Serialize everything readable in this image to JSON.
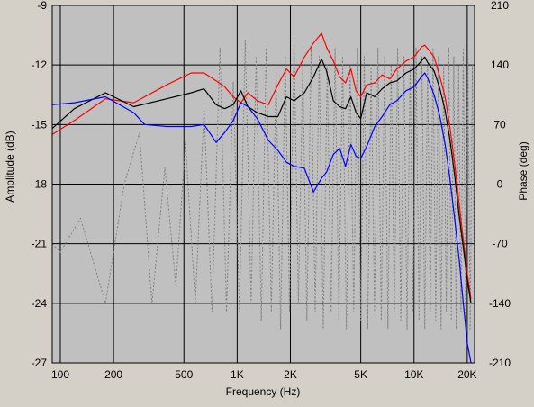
{
  "chart_data": {
    "type": "line",
    "xlabel": "Frequency (Hz)",
    "ylabel_left": "Amplitude (dB)",
    "ylabel_right": "Phase (deg)",
    "x_scale": "log",
    "xlim": [
      90,
      22000
    ],
    "ylim_left": [
      -27,
      -9
    ],
    "ylim_right": [
      -210,
      210
    ],
    "x_ticks": [
      {
        "label": "100",
        "value": 100
      },
      {
        "label": "200",
        "value": 200
      },
      {
        "label": "500",
        "value": 500
      },
      {
        "label": "1K",
        "value": 1000
      },
      {
        "label": "2K",
        "value": 2000
      },
      {
        "label": "5K",
        "value": 5000
      },
      {
        "label": "10K",
        "value": 10000
      },
      {
        "label": "20K",
        "value": 20000
      }
    ],
    "y_ticks_left": [
      "-9",
      "-12",
      "-15",
      "-18",
      "-21",
      "-24",
      "-27"
    ],
    "y_ticks_right": [
      "210",
      "140",
      "70",
      "0",
      "-70",
      "-140",
      "-210"
    ],
    "grid": true,
    "plot_background": "#c0c0c0",
    "series": [
      {
        "color": "#ff0000",
        "axis": "left",
        "style": "solid",
        "x": [
          90,
          120,
          180,
          260,
          400,
          550,
          650,
          760,
          850,
          950,
          1050,
          1150,
          1300,
          1500,
          1700,
          1900,
          2100,
          2400,
          2700,
          3000,
          3200,
          3500,
          3800,
          4100,
          4400,
          4700,
          5000,
          5400,
          6000,
          6600,
          7300,
          8000,
          9000,
          10000,
          11000,
          11500,
          12000,
          13000,
          14000,
          15000,
          16000,
          17000,
          18000,
          19000,
          20000,
          21000
        ],
        "y": [
          -15.5,
          -14.8,
          -13.7,
          -13.9,
          -13.0,
          -12.4,
          -12.4,
          -12.8,
          -13.1,
          -13.6,
          -13.9,
          -13.4,
          -13.8,
          -14.0,
          -13.0,
          -12.2,
          -12.6,
          -11.6,
          -10.9,
          -10.4,
          -11.1,
          -11.8,
          -12.6,
          -12.9,
          -12.2,
          -13.3,
          -13.6,
          -13.0,
          -12.9,
          -12.5,
          -12.7,
          -12.2,
          -11.8,
          -11.6,
          -11.1,
          -11.0,
          -11.2,
          -11.6,
          -12.6,
          -13.6,
          -15.2,
          -17.0,
          -19.0,
          -20.8,
          -22.5,
          -23.8
        ]
      },
      {
        "color": "#000000",
        "axis": "left",
        "style": "solid",
        "x": [
          90,
          120,
          180,
          260,
          400,
          550,
          650,
          760,
          850,
          950,
          1050,
          1150,
          1300,
          1500,
          1700,
          1900,
          2100,
          2400,
          2700,
          3000,
          3200,
          3500,
          3800,
          4100,
          4400,
          4700,
          5000,
          5400,
          6000,
          6600,
          7300,
          8000,
          9000,
          10000,
          11000,
          11500,
          12000,
          13000,
          14000,
          15000,
          16000,
          17000,
          18000,
          19000,
          20000,
          21000
        ],
        "y": [
          -15.2,
          -14.2,
          -13.4,
          -14.1,
          -13.7,
          -13.4,
          -13.2,
          -14.0,
          -14.2,
          -14.0,
          -13.3,
          -14.1,
          -14.4,
          -14.6,
          -14.6,
          -13.6,
          -13.8,
          -13.4,
          -12.6,
          -11.7,
          -12.3,
          -13.8,
          -14.1,
          -14.2,
          -13.6,
          -14.4,
          -14.7,
          -13.4,
          -13.6,
          -13.2,
          -12.9,
          -12.8,
          -12.4,
          -12.2,
          -11.8,
          -11.6,
          -11.9,
          -12.3,
          -13.2,
          -14.3,
          -15.8,
          -17.6,
          -19.6,
          -21.2,
          -22.8,
          -24.0
        ]
      },
      {
        "color": "#0000ff",
        "axis": "left",
        "style": "solid",
        "x": [
          90,
          120,
          180,
          260,
          300,
          400,
          550,
          650,
          760,
          850,
          950,
          1050,
          1150,
          1300,
          1500,
          1700,
          1900,
          2100,
          2400,
          2700,
          3000,
          3200,
          3500,
          3800,
          4100,
          4400,
          4700,
          5000,
          5400,
          6000,
          6600,
          7300,
          8000,
          9000,
          10000,
          11000,
          11500,
          12000,
          13000,
          14000,
          15000,
          16000,
          17000,
          18000,
          19000,
          20000,
          21000
        ],
        "y": [
          -14.0,
          -13.9,
          -13.6,
          -14.4,
          -15.0,
          -15.1,
          -15.1,
          -15.0,
          -15.9,
          -15.4,
          -14.8,
          -13.9,
          -14.1,
          -14.7,
          -15.8,
          -16.3,
          -16.9,
          -17.1,
          -17.2,
          -18.4,
          -17.7,
          -17.4,
          -16.5,
          -16.2,
          -17.1,
          -16.0,
          -16.6,
          -16.7,
          -16.1,
          -15.1,
          -14.6,
          -14.0,
          -13.8,
          -13.3,
          -13.1,
          -12.6,
          -12.4,
          -12.7,
          -13.5,
          -14.6,
          -16.0,
          -17.8,
          -19.8,
          -21.8,
          -24.0,
          -26.0,
          -27.0
        ]
      },
      {
        "color": "#808080",
        "axis": "right",
        "style": "dotted",
        "x": [
          90,
          100,
          130,
          180,
          230,
          280,
          330,
          390,
          450,
          510,
          580,
          650,
          720,
          800,
          870,
          950,
          1030,
          1110,
          1200,
          1280,
          1370,
          1460,
          1560,
          1660,
          1760,
          1870,
          1980,
          2100,
          2220,
          2350,
          2480,
          2620,
          2760,
          2910,
          3070,
          3230,
          3400,
          3580,
          3760,
          3950,
          4150,
          4350,
          4560,
          4780,
          5000,
          5230,
          5470,
          5720,
          5980,
          6250,
          6530,
          6820,
          7120,
          7430,
          7750,
          8080,
          8420,
          8770,
          9130,
          9500,
          9880,
          10270,
          10670,
          11080,
          11500,
          11930,
          12370,
          12820,
          13280,
          13750,
          14230,
          14720,
          15220,
          15730,
          16250,
          16780,
          17320,
          17870,
          18430,
          19000,
          19580,
          20170,
          20770,
          21380,
          22000
        ],
        "y": [
          -70,
          -80,
          -40,
          -140,
          0,
          60,
          -140,
          20,
          -120,
          50,
          -140,
          90,
          -150,
          160,
          -150,
          120,
          -150,
          170,
          -140,
          150,
          -160,
          160,
          -150,
          130,
          -170,
          150,
          -150,
          170,
          -140,
          140,
          -160,
          160,
          -150,
          150,
          -170,
          140,
          -150,
          160,
          -160,
          150,
          -170,
          140,
          -150,
          160,
          -160,
          150,
          -170,
          140,
          -150,
          160,
          -160,
          150,
          -170,
          140,
          -150,
          160,
          -160,
          150,
          -170,
          140,
          -150,
          160,
          -160,
          150,
          -170,
          140,
          -150,
          160,
          -160,
          150,
          -170,
          140,
          -150,
          160,
          -160,
          150,
          -170,
          140,
          -150,
          160,
          -160,
          150,
          -170,
          140,
          -150
        ]
      }
    ]
  }
}
